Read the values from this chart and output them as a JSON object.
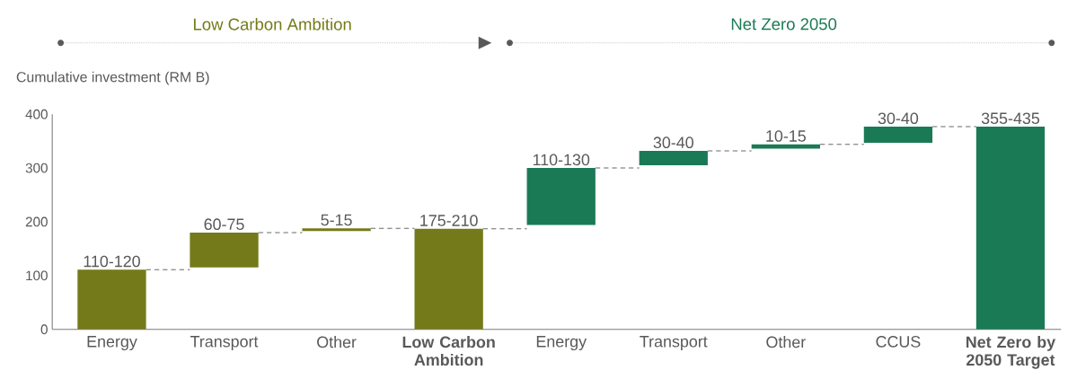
{
  "chart_data": {
    "type": "bar",
    "ylabel": "Cumulative investment (RM B)",
    "categories": [
      "Energy",
      "Transport",
      "Other",
      "**Low Carbon Ambition**",
      "Energy",
      "Transport",
      "Other",
      "CCUS",
      "**Net Zero by 2050 Target**"
    ],
    "values": [
      111,
      65,
      5,
      187,
      106,
      27,
      8,
      30,
      377
    ],
    "base": [
      0,
      115,
      183,
      0,
      194,
      305,
      336,
      347,
      0
    ],
    "colors": [
      "#747a19",
      "#747a19",
      "#747a19",
      "#747a19",
      "#1b7a56",
      "#1b7a56",
      "#1b7a56",
      "#1b7a56",
      "#1b7a56"
    ],
    "value_labels": [
      "110-120",
      "60-75",
      "5-15",
      "175-210",
      "110-130",
      "30-40",
      "10-15",
      "30-40",
      "355-435"
    ],
    "ylim": [
      0,
      400
    ],
    "yticks": [
      0,
      100,
      200,
      300,
      400
    ],
    "annotations": [
      "Low Carbon Ambition",
      "Net Zero 2050"
    ]
  }
}
